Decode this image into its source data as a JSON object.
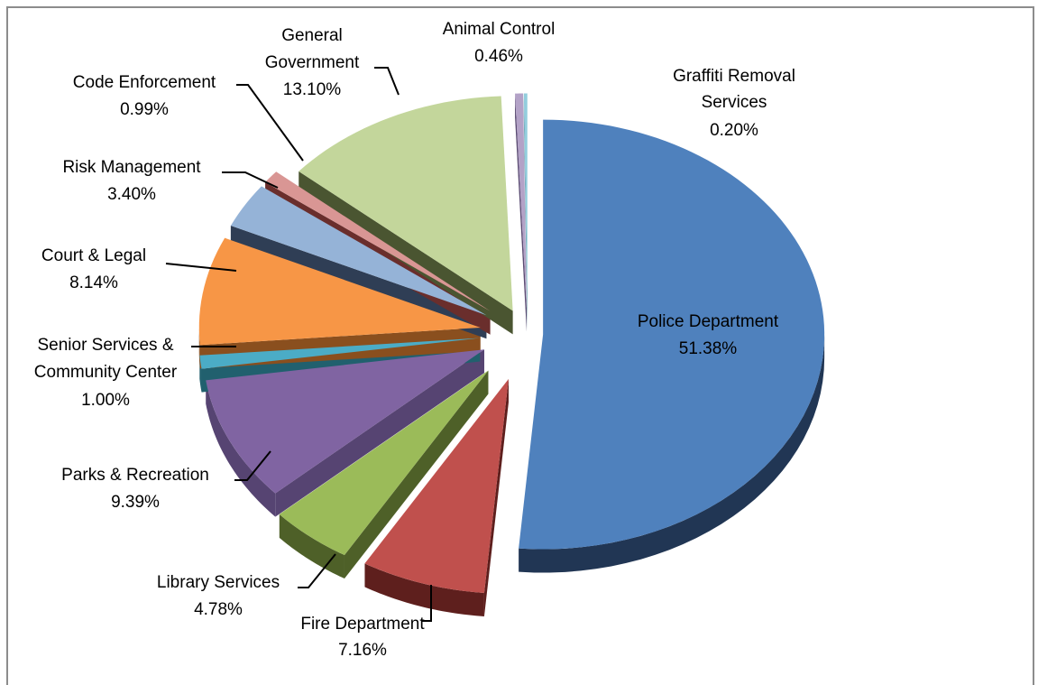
{
  "chart_data": {
    "type": "pie",
    "style": "3d-exploded",
    "slices": [
      {
        "label": "Police Department",
        "value": 51.38,
        "display": "51.38%",
        "color": "#4F81BD",
        "side_color": "#213654"
      },
      {
        "label": "Fire Department",
        "value": 7.16,
        "display": "7.16%",
        "color": "#C0504D",
        "side_color": "#5E1F1D"
      },
      {
        "label": "Library Services",
        "value": 4.78,
        "display": "4.78%",
        "color": "#9BBB59",
        "side_color": "#4E6028"
      },
      {
        "label": "Parks & Recreation",
        "value": 9.39,
        "display": "9.39%",
        "color": "#8064A2",
        "side_color": "#564472"
      },
      {
        "label": "Senior Services & Community Center",
        "value": 1.0,
        "display": "1.00%",
        "color": "#4BACC6",
        "side_color": "#21606E"
      },
      {
        "label": "Court & Legal",
        "value": 8.14,
        "display": "8.14%",
        "color": "#F79646",
        "side_color": "#8A4F1E"
      },
      {
        "label": "Risk Management",
        "value": 3.4,
        "display": "3.40%",
        "color": "#95B3D7",
        "side_color": "#2F3E55"
      },
      {
        "label": "Code Enforcement",
        "value": 0.99,
        "display": "0.99%",
        "color": "#D99694",
        "side_color": "#6A2E2C"
      },
      {
        "label": "General Government",
        "value": 13.1,
        "display": "13.10%",
        "color": "#C3D69B",
        "side_color": "#4A5531"
      },
      {
        "label": "Animal Control",
        "value": 0.46,
        "display": "0.46%",
        "color": "#B3A2C7",
        "side_color": "#5A4B72"
      },
      {
        "label": "Graffiti Removal Services",
        "value": 0.2,
        "display": "0.20%",
        "color": "#93CDDD",
        "side_color": "#3D7A8A"
      }
    ],
    "legend": "none",
    "title": ""
  }
}
